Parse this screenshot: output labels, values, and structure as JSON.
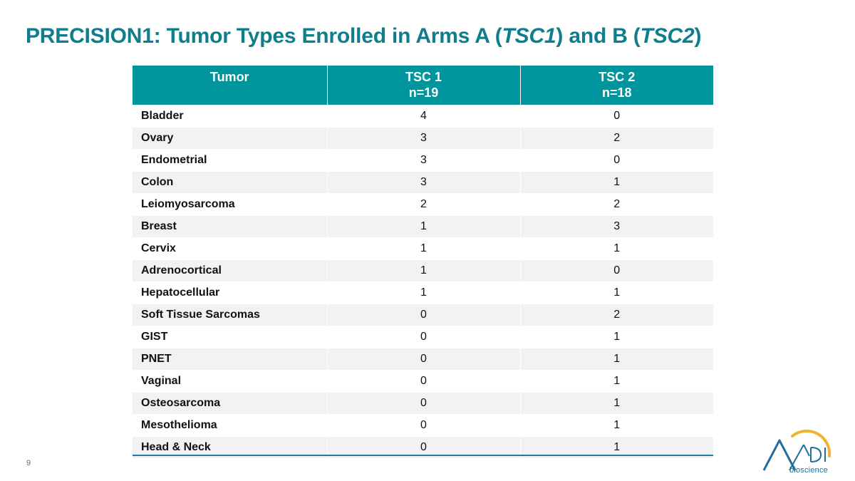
{
  "title": {
    "prefix": "PRECISION1: Tumor Types Enrolled in Arms A (",
    "italic1": "TSC1",
    "middle": ") and B (",
    "italic2": "TSC2",
    "suffix": ")"
  },
  "table": {
    "headers": [
      {
        "line1": "Tumor",
        "line2": ""
      },
      {
        "line1": "TSC 1",
        "line2": "n=19"
      },
      {
        "line1": "TSC 2",
        "line2": "n=18"
      }
    ],
    "rows": [
      {
        "tumor": "Bladder",
        "tsc1": "4",
        "tsc2": "0"
      },
      {
        "tumor": "Ovary",
        "tsc1": "3",
        "tsc2": "2"
      },
      {
        "tumor": "Endometrial",
        "tsc1": "3",
        "tsc2": "0"
      },
      {
        "tumor": "Colon",
        "tsc1": "3",
        "tsc2": "1"
      },
      {
        "tumor": "Leiomyosarcoma",
        "tsc1": "2",
        "tsc2": "2"
      },
      {
        "tumor": "Breast",
        "tsc1": "1",
        "tsc2": "3"
      },
      {
        "tumor": "Cervix",
        "tsc1": "1",
        "tsc2": "1"
      },
      {
        "tumor": "Adrenocortical",
        "tsc1": "1",
        "tsc2": "0"
      },
      {
        "tumor": "Hepatocellular",
        "tsc1": "1",
        "tsc2": "1"
      },
      {
        "tumor": "Soft Tissue Sarcomas",
        "tsc1": "0",
        "tsc2": "2"
      },
      {
        "tumor": "GIST",
        "tsc1": "0",
        "tsc2": "1"
      },
      {
        "tumor": "PNET",
        "tsc1": "0",
        "tsc2": "1"
      },
      {
        "tumor": "Vaginal",
        "tsc1": "0",
        "tsc2": "1"
      },
      {
        "tumor": "Osteosarcoma",
        "tsc1": "0",
        "tsc2": "1"
      },
      {
        "tumor": "Mesothelioma",
        "tsc1": "0",
        "tsc2": "1"
      },
      {
        "tumor": "Head & Neck",
        "tsc1": "0",
        "tsc2": "1"
      }
    ]
  },
  "footer": {
    "page_number": "9",
    "logo_text": "bioscience",
    "logo_icon": "aadi-logo-icon"
  },
  "colors": {
    "title": "#0e7d8c",
    "header_bg": "#00949c",
    "row_stripe": "#f2f2f2",
    "rule": "#1f7fa0",
    "logo_blue": "#1f6f9a",
    "logo_gold": "#f2b233"
  }
}
